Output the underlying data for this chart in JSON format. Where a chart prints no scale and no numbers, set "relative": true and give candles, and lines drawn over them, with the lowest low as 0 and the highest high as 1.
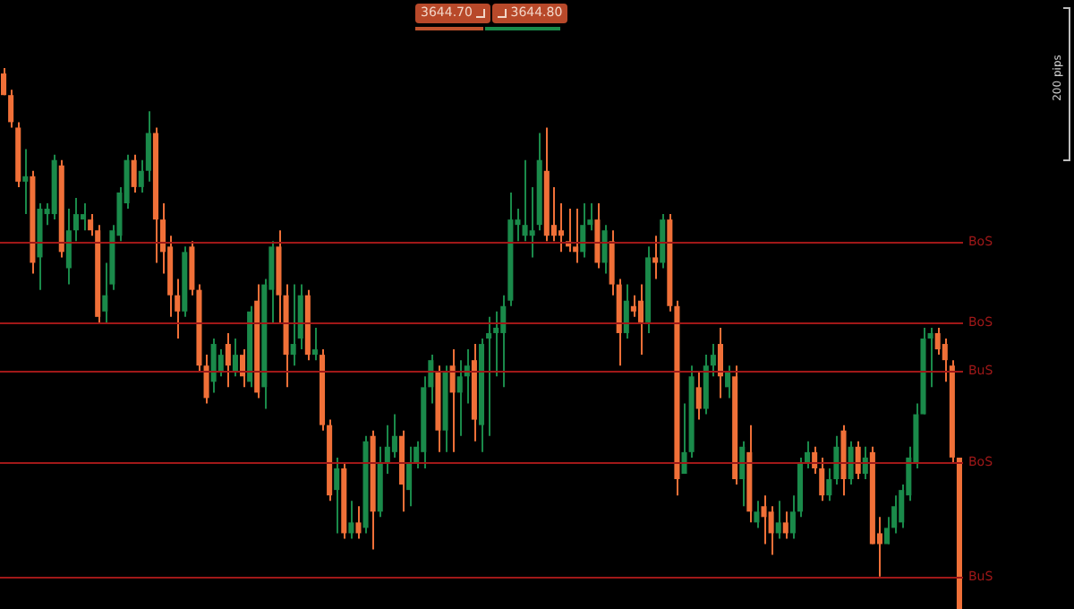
{
  "chart_data": {
    "type": "candlestick",
    "relative": true,
    "tick_labels": false,
    "legend": false,
    "categories": [
      null,
      null,
      null,
      null,
      null,
      null,
      null,
      null,
      null,
      null,
      null,
      null,
      null,
      null,
      null,
      null,
      null,
      null,
      null,
      null,
      null,
      null,
      null,
      null,
      null,
      null,
      null,
      null,
      null,
      null,
      null,
      null,
      null,
      null,
      null,
      null,
      null,
      null,
      null,
      null,
      null,
      null,
      null,
      null,
      null,
      null,
      null,
      null,
      null,
      null,
      null,
      null,
      null,
      null,
      null,
      null,
      null,
      null,
      null,
      null,
      null,
      null,
      null,
      null,
      null,
      null,
      null,
      null,
      null,
      null,
      null,
      null,
      null,
      null,
      null,
      null,
      null,
      null,
      null,
      null,
      null,
      null,
      null,
      null,
      null,
      null,
      null,
      null,
      null,
      null,
      null,
      null,
      null,
      null,
      null,
      null,
      null,
      null,
      null,
      null,
      null,
      null,
      null,
      null,
      null,
      null,
      null,
      null,
      null,
      null,
      null,
      null,
      null,
      null,
      null,
      null,
      null,
      null,
      null,
      null,
      null,
      null,
      null,
      null,
      null,
      null,
      null,
      null,
      null,
      null,
      null,
      null,
      null
    ],
    "ohlc": [
      [
        0.99,
        1,
        0.95,
        0.95
      ],
      [
        0.95,
        0.96,
        0.89,
        0.9
      ],
      [
        0.89,
        0.9,
        0.78,
        0.79
      ],
      [
        0.79,
        0.85,
        0.73,
        0.8
      ],
      [
        0.8,
        0.81,
        0.62,
        0.64
      ],
      [
        0.65,
        0.75,
        0.59,
        0.74
      ],
      [
        0.73,
        0.75,
        0.71,
        0.74
      ],
      [
        0.73,
        0.84,
        0.72,
        0.83
      ],
      [
        0.82,
        0.83,
        0.65,
        0.66
      ],
      [
        0.63,
        0.74,
        0.6,
        0.7
      ],
      [
        0.7,
        0.76,
        0.68,
        0.73
      ],
      [
        0.72,
        0.75,
        0.7,
        0.73
      ],
      [
        0.72,
        0.73,
        0.69,
        0.7
      ],
      [
        0.7,
        0.71,
        0.53,
        0.54
      ],
      [
        0.55,
        0.64,
        0.53,
        0.58
      ],
      [
        0.6,
        0.71,
        0.59,
        0.7
      ],
      [
        0.69,
        0.78,
        0.68,
        0.77
      ],
      [
        0.75,
        0.84,
        0.74,
        0.83
      ],
      [
        0.83,
        0.84,
        0.77,
        0.78
      ],
      [
        0.78,
        0.83,
        0.77,
        0.81
      ],
      [
        0.81,
        0.92,
        0.79,
        0.88
      ],
      [
        0.88,
        0.89,
        0.64,
        0.72
      ],
      [
        0.72,
        0.75,
        0.62,
        0.66
      ],
      [
        0.67,
        0.69,
        0.54,
        0.58
      ],
      [
        0.58,
        0.61,
        0.5,
        0.55
      ],
      [
        0.55,
        0.67,
        0.54,
        0.66
      ],
      [
        0.67,
        0.68,
        0.58,
        0.59
      ],
      [
        0.59,
        0.6,
        0.44,
        0.45
      ],
      [
        0.45,
        0.47,
        0.38,
        0.39
      ],
      [
        0.42,
        0.5,
        0.4,
        0.49
      ],
      [
        0.44,
        0.48,
        0.43,
        0.47
      ],
      [
        0.49,
        0.51,
        0.41,
        0.45
      ],
      [
        0.44,
        0.5,
        0.43,
        0.47
      ],
      [
        0.47,
        0.48,
        0.41,
        0.43
      ],
      [
        0.42,
        0.56,
        0.41,
        0.55
      ],
      [
        0.57,
        0.6,
        0.39,
        0.4
      ],
      [
        0.41,
        0.61,
        0.37,
        0.6
      ],
      [
        0.59,
        0.68,
        0.53,
        0.67
      ],
      [
        0.67,
        0.7,
        0.53,
        0.58
      ],
      [
        0.58,
        0.6,
        0.41,
        0.47
      ],
      [
        0.47,
        0.6,
        0.45,
        0.49
      ],
      [
        0.5,
        0.6,
        0.48,
        0.58
      ],
      [
        0.58,
        0.59,
        0.46,
        0.47
      ],
      [
        0.47,
        0.52,
        0.46,
        0.48
      ],
      [
        0.47,
        0.48,
        0.33,
        0.34
      ],
      [
        0.34,
        0.35,
        0.2,
        0.21
      ],
      [
        0.22,
        0.28,
        0.14,
        0.26
      ],
      [
        0.26,
        0.27,
        0.13,
        0.14
      ],
      [
        0.14,
        0.2,
        0.13,
        0.16
      ],
      [
        0.16,
        0.19,
        0.13,
        0.14
      ],
      [
        0.15,
        0.32,
        0.14,
        0.31
      ],
      [
        0.32,
        0.33,
        0.11,
        0.18
      ],
      [
        0.18,
        0.3,
        0.17,
        0.27
      ],
      [
        0.27,
        0.34,
        0.25,
        0.3
      ],
      [
        0.29,
        0.36,
        0.28,
        0.32
      ],
      [
        0.32,
        0.33,
        0.18,
        0.23
      ],
      [
        0.22,
        0.3,
        0.19,
        0.27
      ],
      [
        0.27,
        0.31,
        0.26,
        0.3
      ],
      [
        0.29,
        0.43,
        0.26,
        0.41
      ],
      [
        0.41,
        0.47,
        0.38,
        0.46
      ],
      [
        0.44,
        0.45,
        0.29,
        0.33
      ],
      [
        0.33,
        0.45,
        0.29,
        0.44
      ],
      [
        0.45,
        0.48,
        0.29,
        0.4
      ],
      [
        0.4,
        0.46,
        0.32,
        0.43
      ],
      [
        0.43,
        0.48,
        0.38,
        0.45
      ],
      [
        0.46,
        0.49,
        0.31,
        0.35
      ],
      [
        0.34,
        0.5,
        0.29,
        0.49
      ],
      [
        0.5,
        0.54,
        0.32,
        0.51
      ],
      [
        0.51,
        0.55,
        0.43,
        0.52
      ],
      [
        0.51,
        0.58,
        0.41,
        0.56
      ],
      [
        0.57,
        0.77,
        0.56,
        0.72
      ],
      [
        0.71,
        0.74,
        0.68,
        0.72
      ],
      [
        0.69,
        0.83,
        0.68,
        0.71
      ],
      [
        0.69,
        0.78,
        0.65,
        0.7
      ],
      [
        0.71,
        0.88,
        0.7,
        0.83
      ],
      [
        0.81,
        0.89,
        0.68,
        0.69
      ],
      [
        0.71,
        0.78,
        0.68,
        0.69
      ],
      [
        0.7,
        0.75,
        0.66,
        0.69
      ],
      [
        0.68,
        0.74,
        0.66,
        0.67
      ],
      [
        0.67,
        0.74,
        0.64,
        0.66
      ],
      [
        0.66,
        0.75,
        0.65,
        0.71
      ],
      [
        0.71,
        0.75,
        0.7,
        0.72
      ],
      [
        0.72,
        0.75,
        0.63,
        0.64
      ],
      [
        0.64,
        0.71,
        0.62,
        0.7
      ],
      [
        0.68,
        0.7,
        0.58,
        0.6
      ],
      [
        0.6,
        0.61,
        0.45,
        0.51
      ],
      [
        0.51,
        0.6,
        0.5,
        0.57
      ],
      [
        0.56,
        0.58,
        0.54,
        0.55
      ],
      [
        0.57,
        0.6,
        0.47,
        0.53
      ],
      [
        0.53,
        0.67,
        0.51,
        0.65
      ],
      [
        0.65,
        0.69,
        0.61,
        0.64
      ],
      [
        0.64,
        0.73,
        0.63,
        0.72
      ],
      [
        0.72,
        0.73,
        0.55,
        0.56
      ],
      [
        0.56,
        0.57,
        0.21,
        0.24
      ],
      [
        0.25,
        0.38,
        0.25,
        0.29
      ],
      [
        0.29,
        0.45,
        0.28,
        0.43
      ],
      [
        0.41,
        0.44,
        0.35,
        0.37
      ],
      [
        0.37,
        0.47,
        0.36,
        0.45
      ],
      [
        0.45,
        0.49,
        0.43,
        0.47
      ],
      [
        0.49,
        0.52,
        0.39,
        0.43
      ],
      [
        0.41,
        0.45,
        0.39,
        0.44
      ],
      [
        0.43,
        0.45,
        0.23,
        0.24
      ],
      [
        0.24,
        0.31,
        0.19,
        0.3
      ],
      [
        0.29,
        0.34,
        0.16,
        0.18
      ],
      [
        0.16,
        0.2,
        0.15,
        0.18
      ],
      [
        0.19,
        0.21,
        0.12,
        0.17
      ],
      [
        0.18,
        0.19,
        0.1,
        0.14
      ],
      [
        0.14,
        0.2,
        0.13,
        0.16
      ],
      [
        0.16,
        0.18,
        0.13,
        0.14
      ],
      [
        0.14,
        0.21,
        0.13,
        0.18
      ],
      [
        0.18,
        0.28,
        0.17,
        0.27
      ],
      [
        0.27,
        0.31,
        0.26,
        0.29
      ],
      [
        0.29,
        0.3,
        0.25,
        0.26
      ],
      [
        0.26,
        0.28,
        0.2,
        0.21
      ],
      [
        0.21,
        0.26,
        0.2,
        0.24
      ],
      [
        0.24,
        0.32,
        0.23,
        0.3
      ],
      [
        0.33,
        0.34,
        0.21,
        0.24
      ],
      [
        0.24,
        0.31,
        0.23,
        0.3
      ],
      [
        0.3,
        0.31,
        0.24,
        0.25
      ],
      [
        0.25,
        0.3,
        0.24,
        0.28
      ],
      [
        0.29,
        0.3,
        0.12,
        0.12
      ],
      [
        0.14,
        0.17,
        0.06,
        0.12
      ],
      [
        0.12,
        0.17,
        0.12,
        0.15
      ],
      [
        0.15,
        0.21,
        0.14,
        0.19
      ],
      [
        0.16,
        0.23,
        0.15,
        0.22
      ],
      [
        0.21,
        0.3,
        0.2,
        0.28
      ],
      [
        0.27,
        0.38,
        0.26,
        0.36
      ],
      [
        0.36,
        0.52,
        0.36,
        0.5
      ],
      [
        0.5,
        0.52,
        0.41,
        0.51
      ],
      [
        0.51,
        0.52,
        0.47,
        0.48
      ],
      [
        0.49,
        0.5,
        0.42,
        0.46
      ],
      [
        0.45,
        0.46,
        0.27,
        0.28
      ],
      [
        0.28,
        0.28,
        0,
        0
      ]
    ],
    "colors": [
      "#f07038",
      "#f07038",
      "#f07038",
      "#1a8a4a",
      "#f07038",
      "#1a8a4a",
      "#1a8a4a",
      "#1a8a4a",
      "#f07038",
      "#1a8a4a",
      "#1a8a4a",
      "#1a8a4a",
      "#f07038",
      "#f07038",
      "#1a8a4a",
      "#1a8a4a",
      "#1a8a4a",
      "#1a8a4a",
      "#f07038",
      "#1a8a4a",
      "#1a8a4a",
      "#f07038",
      "#f07038",
      "#f07038",
      "#f07038",
      "#1a8a4a",
      "#f07038",
      "#f07038",
      "#f07038",
      "#1a8a4a",
      "#1a8a4a",
      "#f07038",
      "#1a8a4a",
      "#f07038",
      "#1a8a4a",
      "#f07038",
      "#1a8a4a",
      "#1a8a4a",
      "#f07038",
      "#f07038",
      "#1a8a4a",
      "#1a8a4a",
      "#f07038",
      "#1a8a4a",
      "#f07038",
      "#f07038",
      "#1a8a4a",
      "#f07038",
      "#1a8a4a",
      "#f07038",
      "#1a8a4a",
      "#f07038",
      "#1a8a4a",
      "#1a8a4a",
      "#1a8a4a",
      "#f07038",
      "#1a8a4a",
      "#1a8a4a",
      "#1a8a4a",
      "#1a8a4a",
      "#f07038",
      "#1a8a4a",
      "#f07038",
      "#1a8a4a",
      "#1a8a4a",
      "#f07038",
      "#1a8a4a",
      "#1a8a4a",
      "#1a8a4a",
      "#1a8a4a",
      "#1a8a4a",
      "#1a8a4a",
      "#1a8a4a",
      "#1a8a4a",
      "#1a8a4a",
      "#f07038",
      "#f07038",
      "#f07038",
      "#f07038",
      "#f07038",
      "#1a8a4a",
      "#1a8a4a",
      "#f07038",
      "#1a8a4a",
      "#f07038",
      "#f07038",
      "#1a8a4a",
      "#f07038",
      "#f07038",
      "#1a8a4a",
      "#f07038",
      "#1a8a4a",
      "#f07038",
      "#f07038",
      "#1a8a4a",
      "#1a8a4a",
      "#f07038",
      "#1a8a4a",
      "#1a8a4a",
      "#f07038",
      "#1a8a4a",
      "#f07038",
      "#1a8a4a",
      "#f07038",
      "#1a8a4a",
      "#f07038",
      "#f07038",
      "#1a8a4a",
      "#f07038",
      "#1a8a4a",
      "#1a8a4a",
      "#1a8a4a",
      "#f07038",
      "#f07038",
      "#1a8a4a",
      "#1a8a4a",
      "#f07038",
      "#1a8a4a",
      "#f07038",
      "#1a8a4a",
      "#f07038",
      "#f07038",
      "#1a8a4a",
      "#1a8a4a",
      "#1a8a4a",
      "#1a8a4a",
      "#1a8a4a",
      "#1a8a4a",
      "#1a8a4a",
      "#f07038",
      "#f07038",
      "#f07038",
      "#f07038"
    ],
    "ref_lines": [
      {
        "axis": "y",
        "value": 0.53,
        "label": "BoS",
        "color": "#a01818"
      },
      {
        "axis": "y",
        "value": 0.68,
        "label": "BoS",
        "color": "#a01818"
      },
      {
        "axis": "y",
        "value": 0.27,
        "label": "BoS",
        "color": "#a01818"
      },
      {
        "axis": "y",
        "value": 0.44,
        "label": "BuS",
        "color": "#a01818"
      },
      {
        "axis": "y",
        "value": 0.06,
        "label": "BuS",
        "color": "#a01818"
      }
    ],
    "annotations": [
      "3644.70",
      "3644.80",
      "200 pips"
    ]
  }
}
